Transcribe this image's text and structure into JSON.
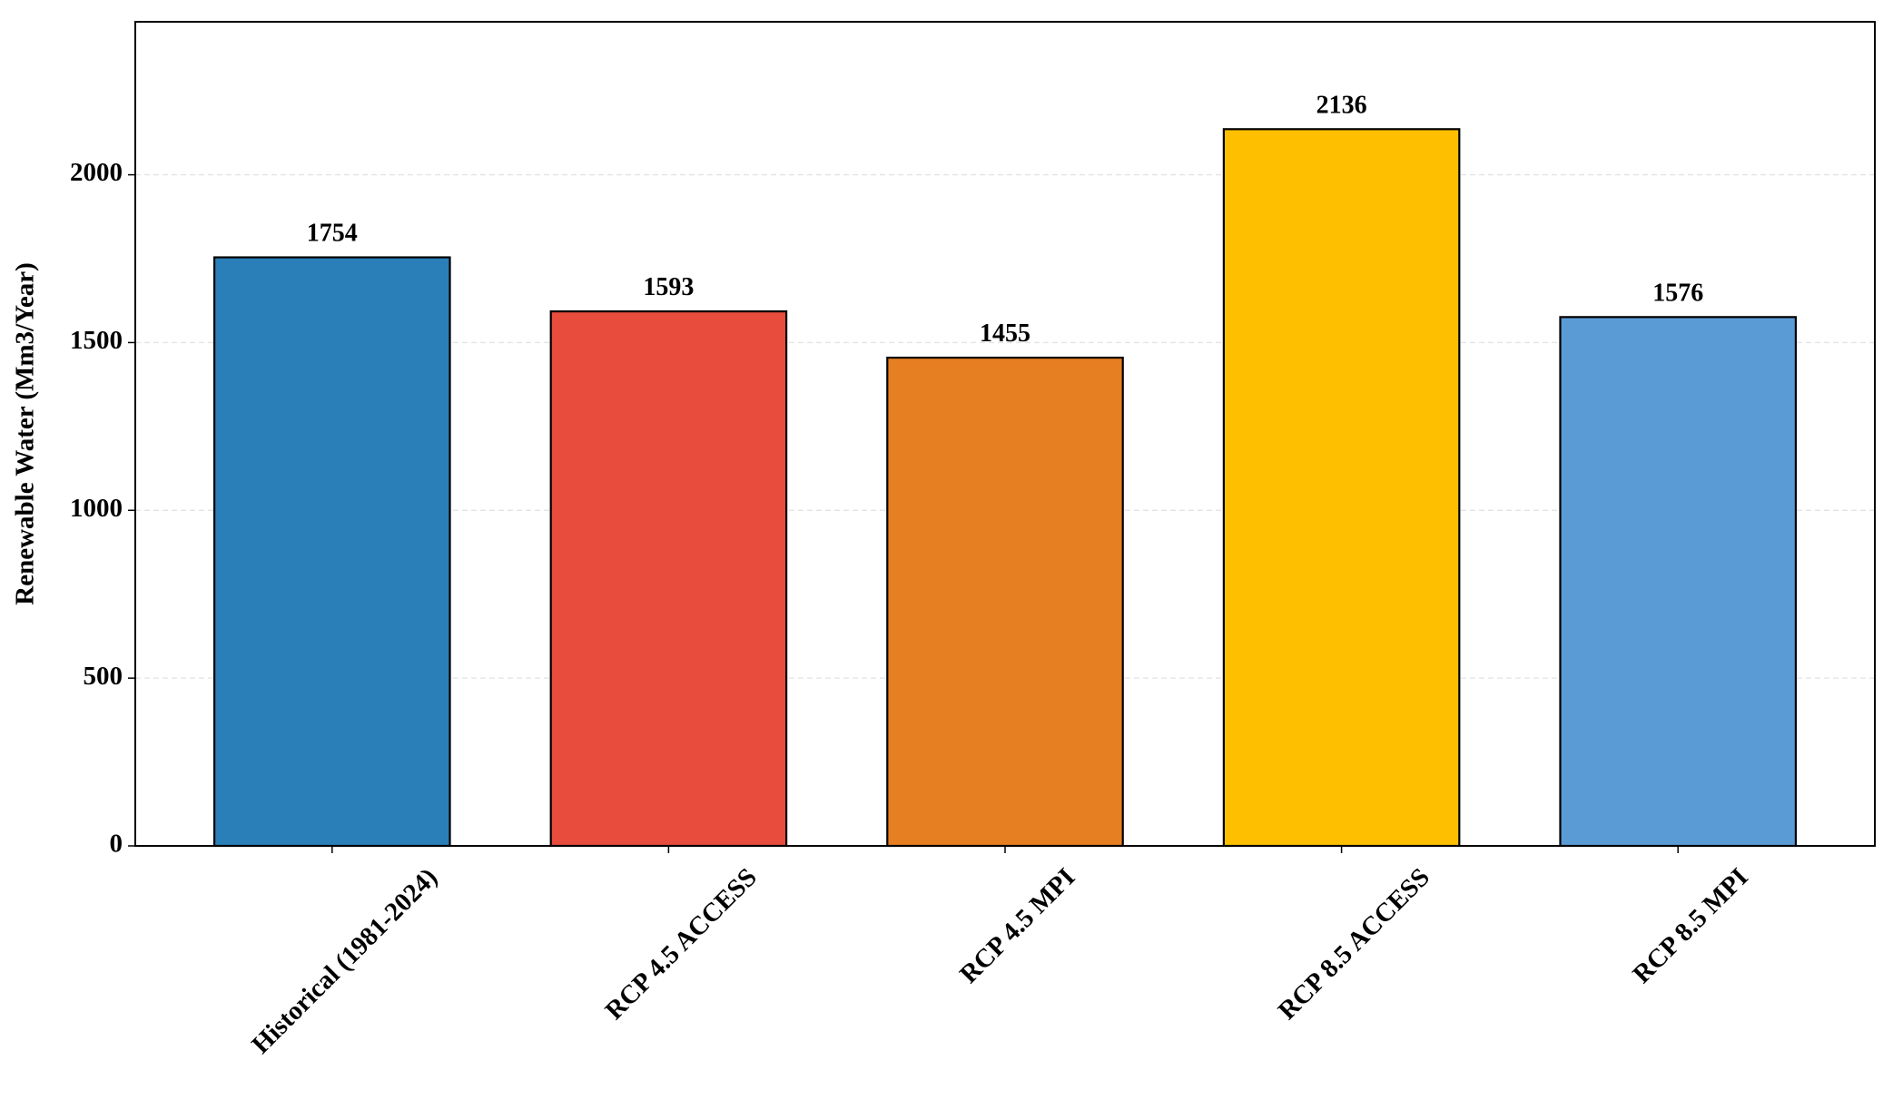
{
  "chart_data": {
    "type": "bar",
    "ylabel": "Renewable Water (Mm3/Year)",
    "categories": [
      "Historical (1981-2024)",
      "RCP 4.5 ACCESS",
      "RCP 4.5 MPI",
      "RCP 8.5 ACCESS",
      "RCP 8.5 MPI"
    ],
    "values": [
      1754,
      1593,
      1455,
      2136,
      1576
    ],
    "colors": [
      "#2a7fb8",
      "#e74c3c",
      "#e67e22",
      "#fdbf00",
      "#5b9bd5"
    ],
    "ylim": [
      0,
      2456
    ],
    "yticks": [
      0,
      500,
      1000,
      1500,
      2000
    ],
    "grid": true
  }
}
